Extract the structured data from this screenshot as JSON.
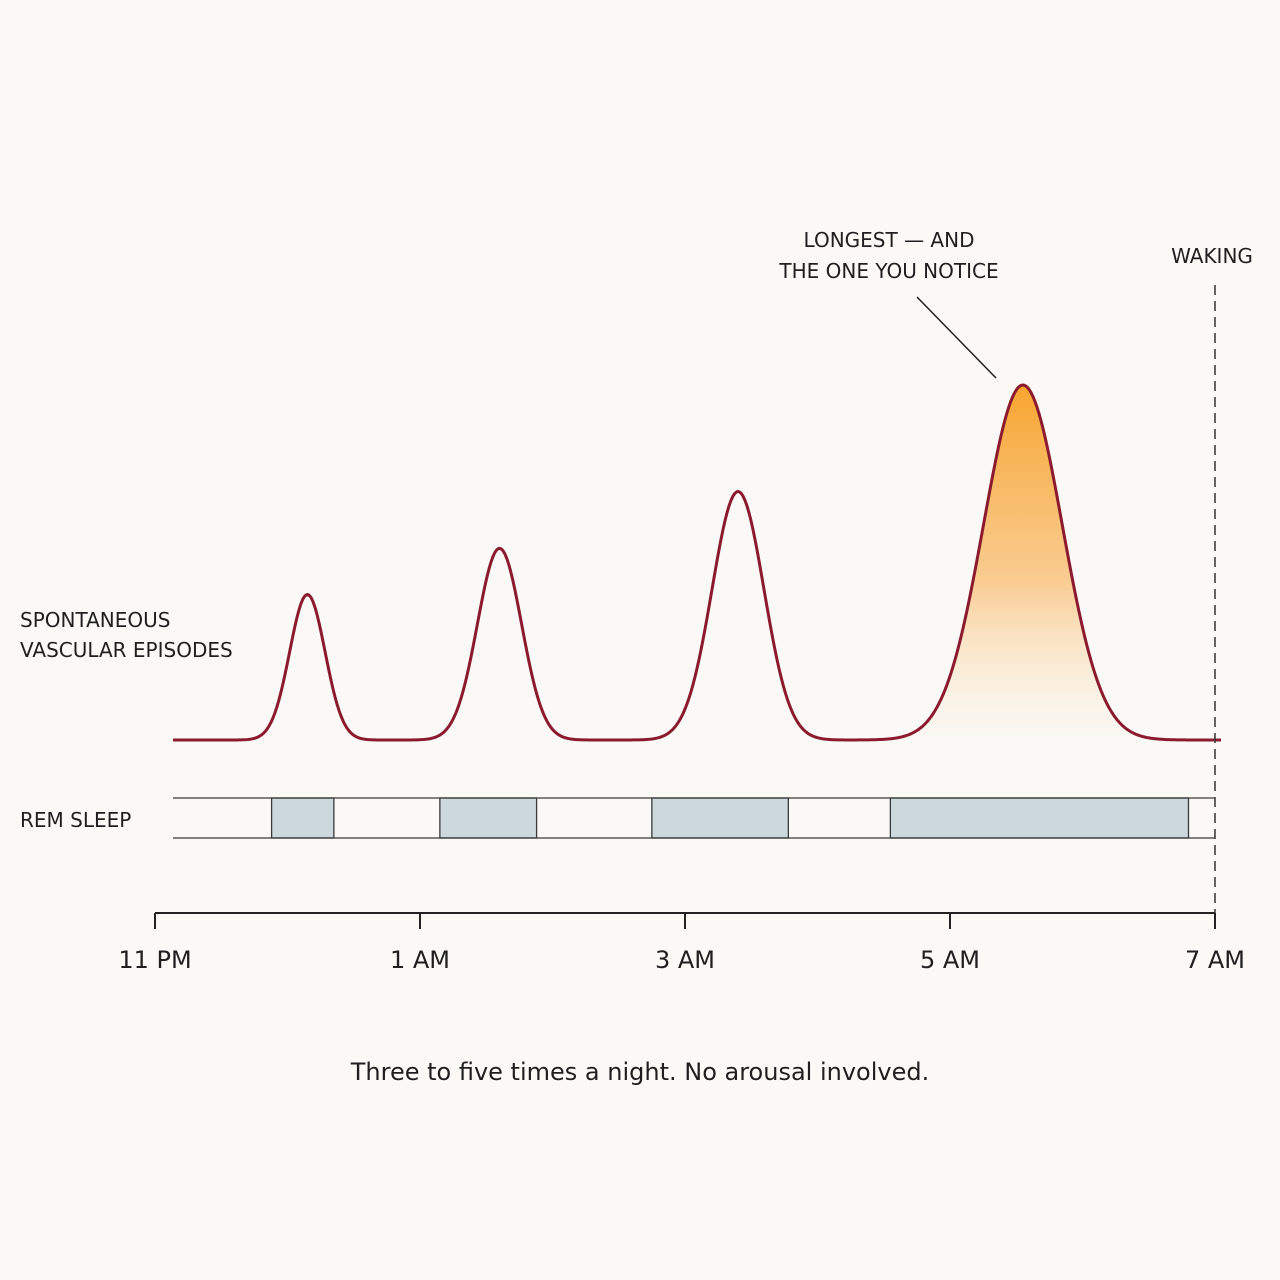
{
  "chart_data": {
    "type": "line",
    "x_axis": {
      "ticks": [
        "11 PM",
        "1 AM",
        "3 AM",
        "5 AM",
        "7 AM"
      ],
      "range_hours": [
        0,
        8
      ]
    },
    "series": [
      {
        "name": "SPONTANEOUS VASCULAR EPISODES",
        "color": "#8c1a2e",
        "episodes": [
          {
            "peak_hour": 1.15,
            "width_hours": 0.45,
            "relative_height": 0.41
          },
          {
            "peak_hour": 2.6,
            "width_hours": 0.56,
            "relative_height": 0.54
          },
          {
            "peak_hour": 4.4,
            "width_hours": 0.66,
            "relative_height": 0.7
          },
          {
            "peak_hour": 6.55,
            "width_hours": 1.0,
            "relative_height": 1.0,
            "highlighted": true
          }
        ]
      }
    ],
    "rem_sleep": {
      "label": "REM SLEEP",
      "color": "#ccd8dc",
      "segments_hours": [
        [
          0.88,
          1.35
        ],
        [
          2.15,
          2.88
        ],
        [
          3.75,
          4.78
        ],
        [
          5.55,
          7.8
        ]
      ]
    },
    "annotations": {
      "peak_note": [
        "LONGEST — AND",
        "THE ONE YOU NOTICE"
      ],
      "waking": "WAKING",
      "waking_hour": 8
    },
    "highlight_color": "#f7a024"
  },
  "caption": "Three to five times a night. No arousal involved."
}
